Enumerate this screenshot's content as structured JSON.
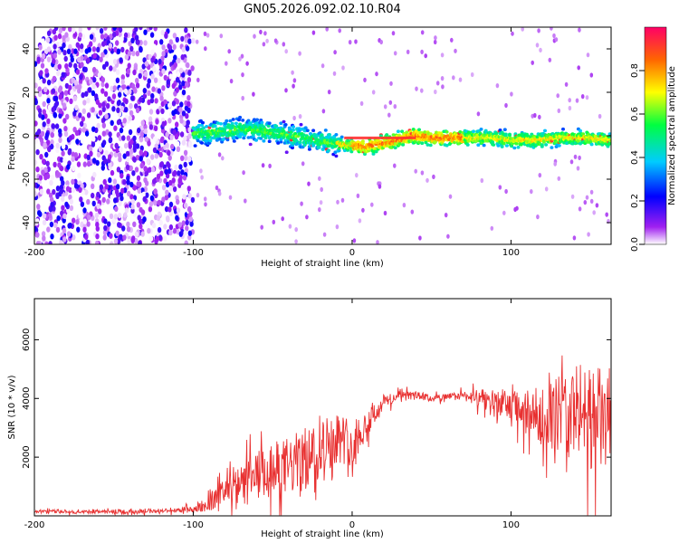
{
  "chart_data": [
    {
      "type": "heatmap",
      "title": "GN05.2026.092.02.10.R04",
      "xlabel": "Height of straight line (km)",
      "ylabel": "Frequency (Hz)",
      "xlim": [
        -200,
        163
      ],
      "ylim": [
        -50,
        50
      ],
      "x_ticks": [
        -200,
        -100,
        0,
        100
      ],
      "y_ticks": [
        40,
        20,
        0,
        -20,
        -40
      ],
      "colorbar": {
        "label": "Normalized spectral amplitude",
        "range": [
          0,
          1
        ],
        "ticks": [
          "0.0",
          "0.2",
          "0.4",
          "0.6",
          "0.8"
        ]
      },
      "description_points": {
        "noise_region_x": [
          -200,
          -100
        ],
        "ridge_x": [
          -100,
          163
        ],
        "ridge_freq_hz": [
          1,
          2,
          3,
          2,
          0,
          -2,
          -4,
          -5,
          -3,
          0,
          -1,
          -1,
          -1,
          -2,
          -2,
          -1,
          -1,
          -2
        ]
      }
    },
    {
      "type": "line",
      "title": "",
      "xlabel": "Height of straight line (km)",
      "ylabel": "SNR (10 * v/v)",
      "xlim": [
        -200,
        163
      ],
      "ylim": [
        0,
        7400
      ],
      "x_ticks": [
        -200,
        -100,
        0,
        100
      ],
      "y_ticks": [
        2000,
        4000,
        6000
      ],
      "series": [
        {
          "name": "SNR",
          "color": "#e83030",
          "x": [
            -200,
            -150,
            -110,
            -100,
            -90,
            -80,
            -70,
            -60,
            -50,
            -40,
            -30,
            -20,
            -10,
            0,
            10,
            20,
            30,
            40,
            50,
            60,
            70,
            80,
            90,
            100,
            110,
            120,
            130,
            140,
            150,
            160,
            163
          ],
          "y_mean": [
            150,
            150,
            180,
            250,
            400,
            800,
            1000,
            1300,
            1500,
            1700,
            1900,
            2300,
            2700,
            2500,
            3200,
            3900,
            4100,
            4100,
            4000,
            4050,
            4100,
            4000,
            3950,
            3700,
            3500,
            3400,
            3500,
            3600,
            3400,
            3200,
            3300
          ],
          "y_spread": [
            60,
            80,
            80,
            150,
            250,
            500,
            700,
            900,
            1000,
            1000,
            1100,
            1000,
            900,
            800,
            500,
            250,
            150,
            150,
            120,
            120,
            150,
            300,
            400,
            600,
            800,
            1000,
            1300,
            1600,
            1800,
            1800,
            1800
          ]
        }
      ]
    }
  ]
}
